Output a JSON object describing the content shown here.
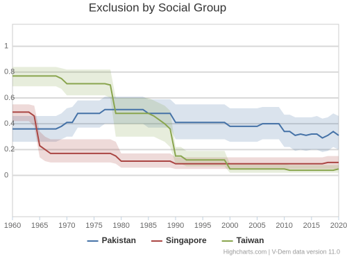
{
  "chart_data": {
    "type": "line",
    "title": "Exclusion by Social Group",
    "credits": "Highcharts.com | V-Dem data version 11.0",
    "x": [
      1960,
      1961,
      1962,
      1963,
      1964,
      1965,
      1966,
      1967,
      1968,
      1969,
      1970,
      1971,
      1972,
      1973,
      1974,
      1975,
      1976,
      1977,
      1978,
      1979,
      1980,
      1981,
      1982,
      1983,
      1984,
      1985,
      1986,
      1987,
      1988,
      1989,
      1990,
      1991,
      1992,
      1993,
      1994,
      1995,
      1996,
      1997,
      1998,
      1999,
      2000,
      2001,
      2002,
      2003,
      2004,
      2005,
      2006,
      2007,
      2008,
      2009,
      2010,
      2011,
      2012,
      2013,
      2014,
      2015,
      2016,
      2017,
      2018,
      2019,
      2020
    ],
    "xlim": [
      1960,
      2020
    ],
    "xticks": [
      1960,
      1965,
      1970,
      1975,
      1980,
      1985,
      1990,
      1995,
      2000,
      2005,
      2010,
      2015,
      2020
    ],
    "ylim": [
      -0.32,
      1.17
    ],
    "yticks": [
      0,
      0.2,
      0.4,
      0.6,
      0.8,
      1
    ],
    "grid": true,
    "legend": "bottom",
    "series": [
      {
        "name": "Pakistan",
        "color": "#4572a7",
        "values": [
          0.36,
          0.36,
          0.36,
          0.36,
          0.36,
          0.36,
          0.36,
          0.36,
          0.36,
          0.38,
          0.41,
          0.41,
          0.48,
          0.48,
          0.48,
          0.48,
          0.48,
          0.51,
          0.51,
          0.51,
          0.51,
          0.51,
          0.51,
          0.51,
          0.51,
          0.48,
          0.48,
          0.48,
          0.48,
          0.48,
          0.41,
          0.41,
          0.41,
          0.41,
          0.41,
          0.41,
          0.41,
          0.41,
          0.41,
          0.41,
          0.38,
          0.38,
          0.38,
          0.38,
          0.38,
          0.38,
          0.4,
          0.4,
          0.4,
          0.4,
          0.34,
          0.34,
          0.31,
          0.32,
          0.31,
          0.32,
          0.32,
          0.29,
          0.31,
          0.34,
          0.31
        ],
        "high": [
          0.46,
          0.46,
          0.46,
          0.46,
          0.46,
          0.46,
          0.46,
          0.46,
          0.46,
          0.48,
          0.52,
          0.53,
          0.58,
          0.58,
          0.58,
          0.58,
          0.58,
          0.61,
          0.61,
          0.61,
          0.61,
          0.61,
          0.61,
          0.61,
          0.61,
          0.59,
          0.59,
          0.59,
          0.59,
          0.59,
          0.55,
          0.55,
          0.55,
          0.55,
          0.55,
          0.55,
          0.55,
          0.55,
          0.55,
          0.55,
          0.52,
          0.52,
          0.52,
          0.52,
          0.52,
          0.52,
          0.53,
          0.53,
          0.53,
          0.53,
          0.47,
          0.47,
          0.45,
          0.45,
          0.45,
          0.45,
          0.46,
          0.44,
          0.45,
          0.48,
          0.46
        ],
        "low": [
          0.26,
          0.26,
          0.26,
          0.26,
          0.26,
          0.26,
          0.26,
          0.26,
          0.26,
          0.28,
          0.3,
          0.3,
          0.37,
          0.37,
          0.37,
          0.37,
          0.37,
          0.4,
          0.4,
          0.4,
          0.4,
          0.4,
          0.4,
          0.4,
          0.4,
          0.37,
          0.37,
          0.37,
          0.37,
          0.37,
          0.28,
          0.28,
          0.28,
          0.28,
          0.28,
          0.28,
          0.28,
          0.28,
          0.28,
          0.28,
          0.26,
          0.26,
          0.26,
          0.26,
          0.26,
          0.26,
          0.28,
          0.28,
          0.28,
          0.28,
          0.22,
          0.22,
          0.19,
          0.2,
          0.19,
          0.2,
          0.2,
          0.18,
          0.19,
          0.22,
          0.2
        ]
      },
      {
        "name": "Singapore",
        "color": "#aa4643",
        "values": [
          0.49,
          0.49,
          0.49,
          0.49,
          0.46,
          0.23,
          0.2,
          0.17,
          0.17,
          0.17,
          0.17,
          0.17,
          0.17,
          0.17,
          0.17,
          0.17,
          0.17,
          0.17,
          0.17,
          0.15,
          0.11,
          0.11,
          0.11,
          0.11,
          0.11,
          0.11,
          0.11,
          0.11,
          0.11,
          0.11,
          0.09,
          0.09,
          0.09,
          0.09,
          0.09,
          0.09,
          0.09,
          0.09,
          0.09,
          0.09,
          0.09,
          0.09,
          0.09,
          0.09,
          0.09,
          0.09,
          0.09,
          0.09,
          0.09,
          0.09,
          0.09,
          0.09,
          0.09,
          0.09,
          0.09,
          0.09,
          0.09,
          0.09,
          0.1,
          0.1,
          0.1
        ],
        "high": [
          0.55,
          0.55,
          0.55,
          0.55,
          0.54,
          0.34,
          0.3,
          0.28,
          0.28,
          0.28,
          0.28,
          0.28,
          0.28,
          0.28,
          0.28,
          0.28,
          0.28,
          0.28,
          0.28,
          0.26,
          0.17,
          0.17,
          0.17,
          0.17,
          0.17,
          0.17,
          0.17,
          0.17,
          0.17,
          0.17,
          0.14,
          0.14,
          0.14,
          0.14,
          0.14,
          0.14,
          0.14,
          0.14,
          0.14,
          0.14,
          0.14,
          0.14,
          0.14,
          0.14,
          0.14,
          0.14,
          0.14,
          0.14,
          0.14,
          0.14,
          0.14,
          0.14,
          0.14,
          0.14,
          0.14,
          0.14,
          0.14,
          0.14,
          0.15,
          0.15,
          0.15
        ],
        "low": [
          0.42,
          0.42,
          0.42,
          0.42,
          0.38,
          0.14,
          0.11,
          0.1,
          0.1,
          0.1,
          0.1,
          0.1,
          0.1,
          0.1,
          0.1,
          0.1,
          0.1,
          0.1,
          0.1,
          0.09,
          0.06,
          0.06,
          0.06,
          0.06,
          0.06,
          0.06,
          0.06,
          0.06,
          0.06,
          0.06,
          0.05,
          0.05,
          0.05,
          0.05,
          0.05,
          0.05,
          0.05,
          0.05,
          0.05,
          0.05,
          0.05,
          0.05,
          0.05,
          0.05,
          0.05,
          0.05,
          0.05,
          0.05,
          0.05,
          0.05,
          0.05,
          0.05,
          0.05,
          0.05,
          0.05,
          0.05,
          0.05,
          0.05,
          0.05,
          0.05,
          0.05
        ]
      },
      {
        "name": "Taiwan",
        "color": "#89a54e",
        "values": [
          0.77,
          0.77,
          0.77,
          0.77,
          0.77,
          0.77,
          0.77,
          0.77,
          0.77,
          0.75,
          0.71,
          0.71,
          0.71,
          0.71,
          0.71,
          0.71,
          0.71,
          0.71,
          0.7,
          0.48,
          0.48,
          0.48,
          0.48,
          0.48,
          0.48,
          0.48,
          0.46,
          0.43,
          0.4,
          0.36,
          0.15,
          0.15,
          0.12,
          0.12,
          0.12,
          0.12,
          0.12,
          0.12,
          0.12,
          0.12,
          0.05,
          0.05,
          0.05,
          0.05,
          0.05,
          0.05,
          0.05,
          0.05,
          0.05,
          0.05,
          0.05,
          0.04,
          0.04,
          0.04,
          0.04,
          0.04,
          0.04,
          0.04,
          0.04,
          0.04,
          0.05
        ],
        "high": [
          0.84,
          0.84,
          0.84,
          0.84,
          0.84,
          0.84,
          0.84,
          0.84,
          0.84,
          0.83,
          0.82,
          0.82,
          0.82,
          0.82,
          0.82,
          0.82,
          0.82,
          0.82,
          0.82,
          0.6,
          0.6,
          0.6,
          0.6,
          0.6,
          0.6,
          0.6,
          0.58,
          0.56,
          0.54,
          0.5,
          0.22,
          0.22,
          0.19,
          0.19,
          0.19,
          0.19,
          0.19,
          0.19,
          0.19,
          0.19,
          0.09,
          0.09,
          0.09,
          0.09,
          0.09,
          0.09,
          0.09,
          0.09,
          0.09,
          0.09,
          0.09,
          0.08,
          0.08,
          0.08,
          0.08,
          0.08,
          0.08,
          0.08,
          0.08,
          0.08,
          0.08
        ],
        "low": [
          0.69,
          0.69,
          0.69,
          0.69,
          0.69,
          0.69,
          0.69,
          0.69,
          0.69,
          0.67,
          0.62,
          0.62,
          0.62,
          0.62,
          0.62,
          0.62,
          0.62,
          0.62,
          0.6,
          0.3,
          0.3,
          0.3,
          0.3,
          0.3,
          0.3,
          0.3,
          0.3,
          0.28,
          0.26,
          0.22,
          0.09,
          0.09,
          0.07,
          0.07,
          0.07,
          0.07,
          0.07,
          0.07,
          0.07,
          0.07,
          0.02,
          0.02,
          0.02,
          0.02,
          0.02,
          0.02,
          0.02,
          0.02,
          0.02,
          0.02,
          0.02,
          0.02,
          0.02,
          0.02,
          0.02,
          0.02,
          0.02,
          0.02,
          0.02,
          0.02,
          0.02
        ]
      }
    ]
  }
}
